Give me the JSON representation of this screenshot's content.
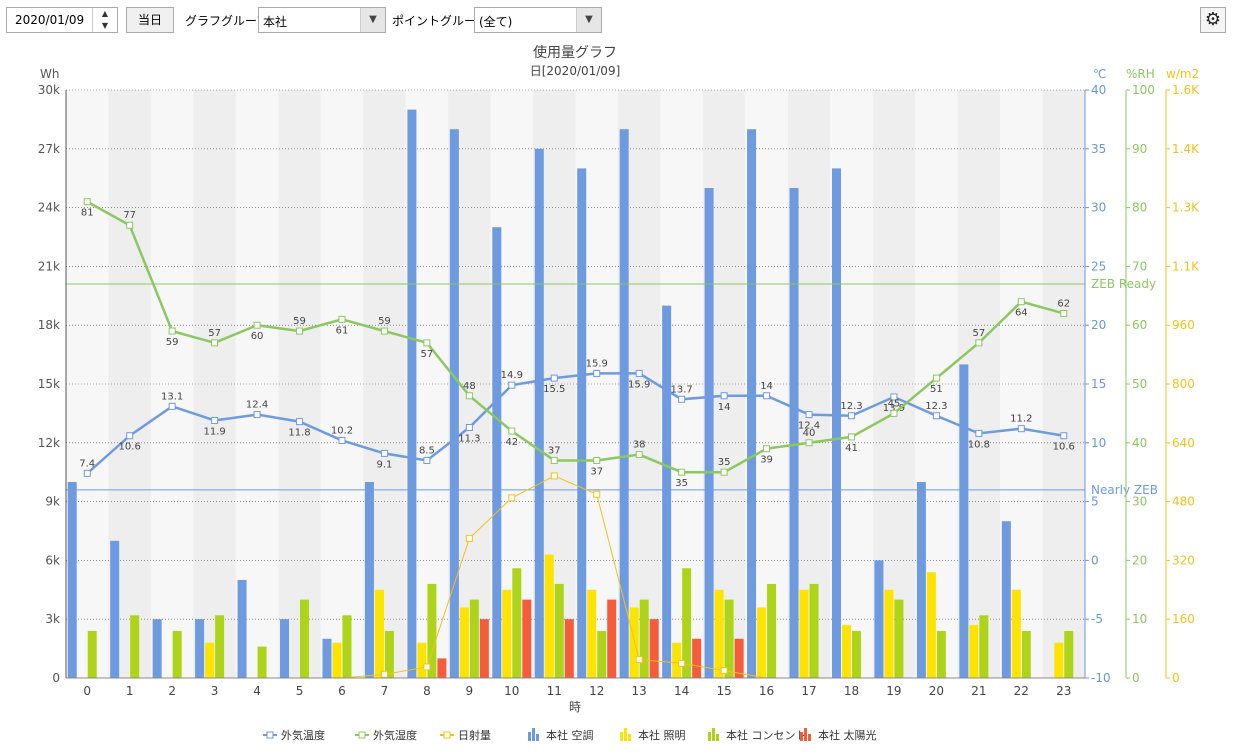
{
  "toolbar": {
    "date_value": "2020/01/09",
    "today_button": "当日",
    "graph_group_label": "グラフグループ:",
    "graph_group_value": "本社",
    "point_group_label": "ポイントグループ:",
    "point_group_value": "(全て)",
    "settings_icon": "gear-icon",
    "spin_up_icon": "triangle-up-icon",
    "spin_down_icon": "triangle-down-icon",
    "dropdown_icon": "triangle-down-icon"
  },
  "chart_data": {
    "type": "bar",
    "title": "使用量グラフ",
    "subtitle": "日[2020/01/09]",
    "xlabel": "時",
    "categories": [
      "0",
      "1",
      "2",
      "3",
      "4",
      "5",
      "6",
      "7",
      "8",
      "9",
      "10",
      "11",
      "12",
      "13",
      "14",
      "15",
      "16",
      "17",
      "18",
      "19",
      "20",
      "21",
      "22",
      "23"
    ],
    "axes": {
      "wh": {
        "unit": "Wh",
        "ylim": [
          0,
          30000
        ],
        "ticks": [
          "0",
          "3k",
          "6k",
          "9k",
          "12k",
          "15k",
          "18k",
          "21k",
          "24k",
          "27k",
          "30k"
        ],
        "color": "#555555"
      },
      "temp": {
        "unit": "℃",
        "ylim": [
          -10,
          40
        ],
        "ticks": [
          "-10",
          "-5",
          "0",
          "5",
          "10",
          "15",
          "20",
          "25",
          "30",
          "35",
          "40"
        ],
        "color": "#6a98d8"
      },
      "rh": {
        "unit": "%RH",
        "ylim": [
          0,
          100
        ],
        "ticks": [
          "0",
          "10",
          "20",
          "30",
          "40",
          "50",
          "60",
          "70",
          "80",
          "90",
          "100"
        ],
        "color": "#8bc860"
      },
      "solar": {
        "unit": "w/m2",
        "ylim": [
          0,
          1600
        ],
        "ticks": [
          "0",
          "160",
          "320",
          "480",
          "640",
          "800",
          "960",
          "1.1K",
          "1.3K",
          "1.4K",
          "1.6K"
        ],
        "color": "#f2c21b"
      }
    },
    "bar_series": [
      {
        "name": "本社 空調",
        "color": "#6e9ae0",
        "values": [
          10000,
          7000,
          3000,
          3000,
          5000,
          3000,
          2000,
          10000,
          29000,
          28000,
          23000,
          27000,
          26000,
          28000,
          19000,
          25000,
          28000,
          25000,
          26000,
          6000,
          10000,
          16000,
          8000,
          0
        ]
      },
      {
        "name": "本社 照明",
        "color": "#fde400",
        "values": [
          0,
          0,
          0,
          1800,
          0,
          0,
          1800,
          4500,
          1800,
          3600,
          4500,
          6300,
          4500,
          3600,
          1800,
          4500,
          3600,
          4500,
          2700,
          4500,
          5400,
          2700,
          4500,
          1800
        ]
      },
      {
        "name": "本社 コンセント",
        "color": "#aed419",
        "values": [
          2400,
          3200,
          2400,
          3200,
          1600,
          4000,
          3200,
          2400,
          4800,
          4000,
          5600,
          4800,
          2400,
          4000,
          5600,
          4000,
          4800,
          4800,
          2400,
          4000,
          2400,
          3200,
          2400,
          2400
        ]
      },
      {
        "name": "本社 太陽光",
        "color": "#f45c3c",
        "values": [
          0,
          0,
          0,
          0,
          0,
          0,
          0,
          0,
          1000,
          3000,
          4000,
          3000,
          4000,
          3000,
          2000,
          2000,
          0,
          0,
          0,
          0,
          0,
          0,
          0,
          0
        ]
      }
    ],
    "line_series": [
      {
        "name": "外気温度",
        "axis": "temp",
        "color": "#6e9ae0",
        "values": [
          7.4,
          10.6,
          13.1,
          11.9,
          12.4,
          11.8,
          10.2,
          9.1,
          8.5,
          11.3,
          14.9,
          15.5,
          15.9,
          15.9,
          13.7,
          14,
          14,
          12.4,
          12.3,
          13.9,
          12.3,
          10.8,
          11.2,
          10.6
        ],
        "labels": [
          "7.4",
          "10.6",
          "13.1",
          "11.9",
          "12.4",
          "11.8",
          "10.2",
          "9.1",
          "8.5",
          "11.3",
          "14.9",
          "15.5",
          "15.9",
          "15.9",
          "13.7",
          "14",
          "14",
          "12.4",
          "12.3",
          "13.9",
          "12.3",
          "10.8",
          "11.2",
          "10.6"
        ]
      },
      {
        "name": "外気湿度",
        "axis": "rh",
        "color": "#8bc860",
        "values": [
          81,
          77,
          59,
          57,
          60,
          59,
          61,
          59,
          57,
          48,
          42,
          37,
          37,
          38,
          35,
          35,
          39,
          40,
          41,
          45,
          51,
          57,
          64,
          62
        ],
        "labels": [
          "81",
          "77",
          "59",
          "57",
          "60",
          "59",
          "61",
          "59",
          "57",
          "48",
          "42",
          "37",
          "37",
          "38",
          "35",
          "35",
          "39",
          "40",
          "41",
          "45",
          "51",
          "57",
          "64",
          "62"
        ]
      },
      {
        "name": "日射量",
        "axis": "solar",
        "color": "#f2c21b",
        "values": [
          0,
          0,
          0,
          0,
          0,
          0,
          0,
          10,
          30,
          380,
          490,
          550,
          500,
          50,
          40,
          20,
          0,
          0,
          0,
          0,
          0,
          0,
          0,
          0
        ],
        "labels": []
      }
    ],
    "reference_lines": [
      {
        "name": "ZEB Ready",
        "axis": "rh",
        "value": 67,
        "color": "#8bc860"
      },
      {
        "name": "Nearly ZEB",
        "axis": "temp",
        "value": 6,
        "color": "#6e9ae0"
      }
    ],
    "legend": {
      "placement": "bottom",
      "items": [
        {
          "name": "外気温度",
          "color": "#6e9ae0",
          "kind": "line"
        },
        {
          "name": "外気湿度",
          "color": "#8bc860",
          "kind": "line"
        },
        {
          "name": "日射量",
          "color": "#f2c21b",
          "kind": "line"
        },
        {
          "name": "本社 空調",
          "color": "#6e9ae0",
          "kind": "bar"
        },
        {
          "name": "本社 照明",
          "color": "#fde400",
          "kind": "bar"
        },
        {
          "name": "本社 コンセント",
          "color": "#aed419",
          "kind": "bar"
        },
        {
          "name": "本社 太陽光",
          "color": "#f45c3c",
          "kind": "bar"
        }
      ]
    },
    "grid": true
  }
}
